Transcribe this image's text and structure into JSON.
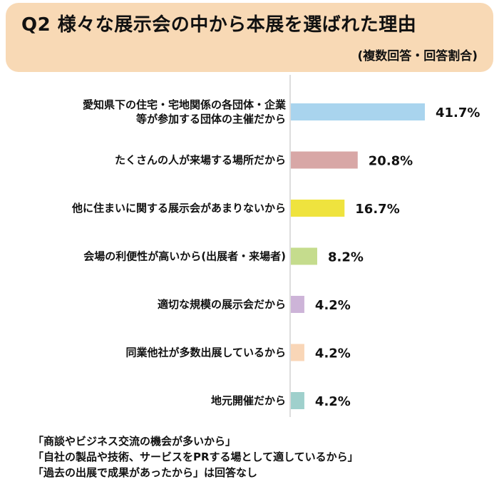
{
  "header": {
    "title": "Q2 様々な展示会の中から本展を選ばれた理由",
    "subtitle": "(複数回答・回答割合)"
  },
  "chart_data": {
    "type": "bar",
    "orientation": "horizontal",
    "categories": [
      [
        "愛知県下の住宅・宅地関係の各団体・企業",
        "等が参加する団体の主催だから"
      ],
      [
        "たくさんの人が来場する場所だから"
      ],
      [
        "他に住まいに関する展示会があまりないから"
      ],
      [
        "会場の利便性が高いから(出展者・来場者)"
      ],
      [
        "適切な規模の展示会だから"
      ],
      [
        "同業他社が多数出展しているから"
      ],
      [
        "地元開催だから"
      ]
    ],
    "values": [
      41.7,
      20.8,
      16.7,
      8.2,
      4.2,
      4.2,
      4.2
    ],
    "value_labels": [
      "41.7%",
      "20.8%",
      "16.7%",
      "8.2%",
      "4.2%",
      "4.2%",
      "4.2%"
    ],
    "colors": [
      "#a9d4ee",
      "#d8a7a6",
      "#efe33e",
      "#c5dc8d",
      "#cdb4d8",
      "#f9d6b7",
      "#9fd0cc"
    ],
    "xlim": [
      0,
      41.7
    ],
    "grid": false,
    "legend": "none"
  },
  "notes": [
    "「商談やビジネス交流の機会が多いから」",
    "「自社の製品や技術、サービスをPRする場として適しているから」",
    "「過去の出展で成果があったから」は回答なし"
  ]
}
